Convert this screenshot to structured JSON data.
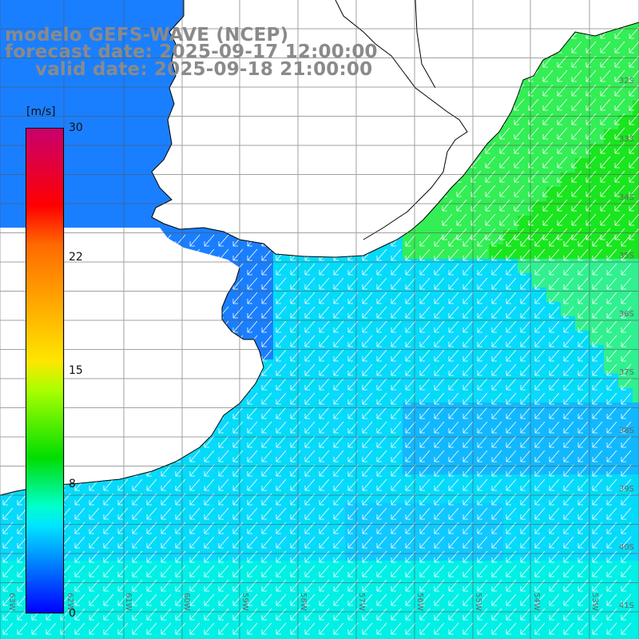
{
  "title": {
    "model": "modelo GEFS-WAVE (NCEP)",
    "forecast": "forecast date: 2025-09-17 12:00:00",
    "valid": "valid date: 2025-09-18 21:00:00"
  },
  "colorbar": {
    "unit": "[m/s]",
    "ticks": [
      "30",
      "22",
      "15",
      "8",
      "0"
    ],
    "tick_values": [
      30,
      22,
      15,
      8,
      0
    ],
    "range": [
      0,
      30
    ],
    "colors": [
      "#0000ff",
      "#0099ff",
      "#00e5ff",
      "#00ffcc",
      "#00dd00",
      "#aaff00",
      "#ffe600",
      "#ff6a00",
      "#ff0000",
      "#c8006e"
    ]
  },
  "map": {
    "variable": "wind speed and direction (vectors)",
    "land_color": "#ffffff",
    "coastline_color": "#000000",
    "grid": true,
    "lat_labels": [
      "32S",
      "33S",
      "34S",
      "35S",
      "36S",
      "37S",
      "38S",
      "39S",
      "40S",
      "41S"
    ],
    "lon_labels": [
      "63W",
      "62W",
      "61W",
      "60W",
      "59W",
      "58W",
      "57W",
      "56W",
      "55W",
      "54W",
      "53W"
    ]
  }
}
